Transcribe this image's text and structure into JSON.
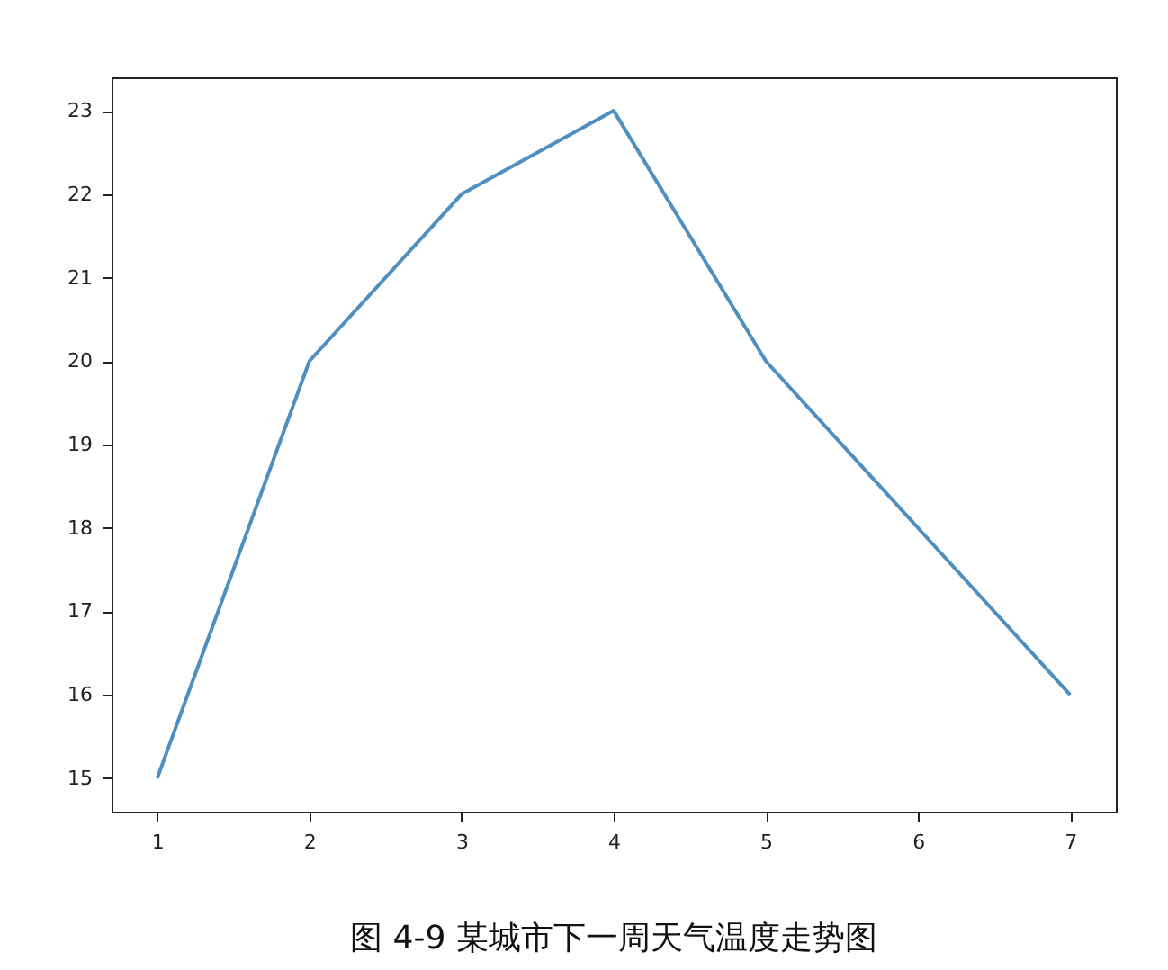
{
  "chart_data": {
    "type": "line",
    "annotations": [
      "图 4-9  某城市下一周天气温度走势图"
    ],
    "x": [
      1,
      2,
      3,
      4,
      5,
      6,
      7
    ],
    "series": [
      {
        "color": "#4f8fc0",
        "values": [
          15,
          20,
          22,
          23,
          20,
          18,
          16
        ]
      }
    ],
    "xlim": [
      0.7,
      7.3
    ],
    "ylim": [
      14.6,
      23.4
    ],
    "xticks": [
      1,
      2,
      3,
      4,
      5,
      6,
      7
    ],
    "yticks": [
      15,
      16,
      17,
      18,
      19,
      20,
      21,
      22,
      23
    ],
    "grid": false,
    "marker": "none",
    "line_style": "solid"
  }
}
